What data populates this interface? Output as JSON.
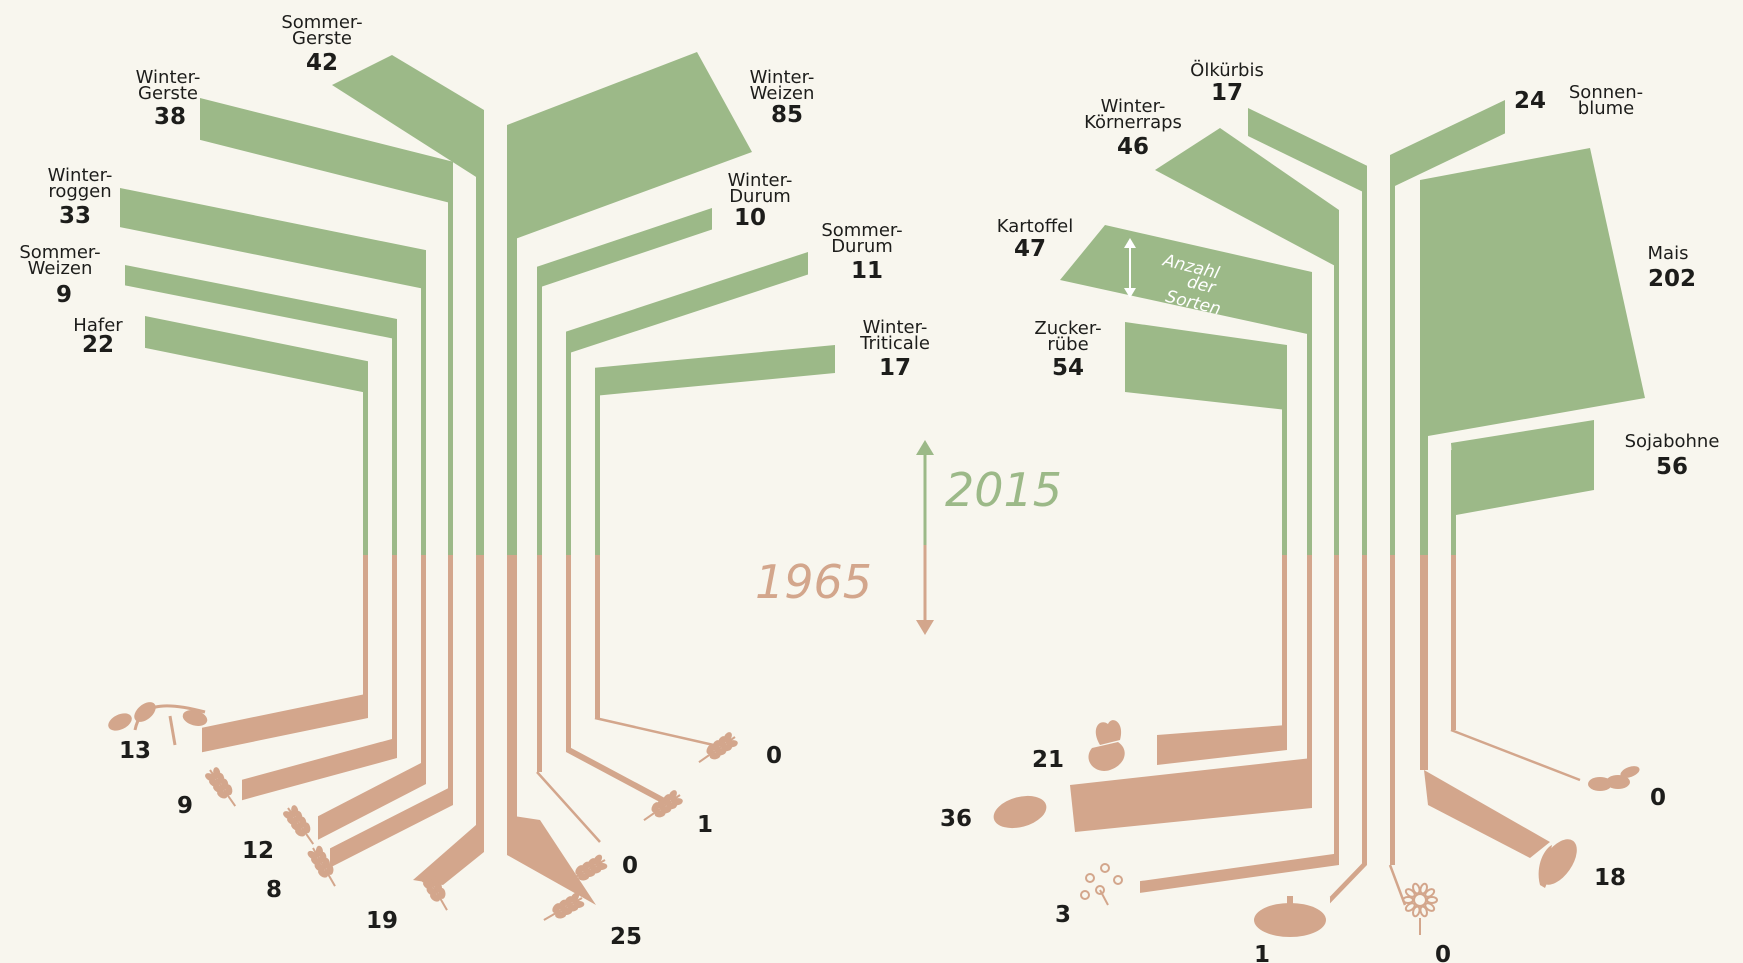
{
  "colors": {
    "green": "#9cb988",
    "brown": "#d3a68c",
    "text": "#1d1d1b",
    "background": "#f8f6ee"
  },
  "legend": {
    "year_new": "2015",
    "year_old": "1965",
    "arrow_note": [
      "Anzahl",
      "der",
      "Sorten"
    ]
  },
  "crops": [
    {
      "id": "sommer-gerste",
      "name": [
        "Sommer-",
        "Gerste"
      ],
      "v2015": 42,
      "v1965": 19,
      "icon": "wheat-icon"
    },
    {
      "id": "winter-gerste",
      "name": [
        "Winter-",
        "Gerste"
      ],
      "v2015": 38,
      "v1965": 8,
      "icon": "wheat-icon"
    },
    {
      "id": "winter-roggen",
      "name": [
        "Winter-",
        "roggen"
      ],
      "v2015": 33,
      "v1965": 12,
      "icon": "wheat-icon"
    },
    {
      "id": "sommer-weizen",
      "name": [
        "Sommer-",
        "Weizen"
      ],
      "v2015": 9,
      "v1965": 9,
      "icon": "wheat-icon"
    },
    {
      "id": "hafer",
      "name": [
        "Hafer"
      ],
      "v2015": 22,
      "v1965": 13,
      "icon": "oat-icon"
    },
    {
      "id": "winter-weizen",
      "name": [
        "Winter-",
        "Weizen"
      ],
      "v2015": 85,
      "v1965": 25,
      "icon": "wheat-icon"
    },
    {
      "id": "winter-durum",
      "name": [
        "Winter-",
        "Durum"
      ],
      "v2015": 10,
      "v1965": 0,
      "icon": "wheat-icon"
    },
    {
      "id": "sommer-durum",
      "name": [
        "Sommer-",
        "Durum"
      ],
      "v2015": 11,
      "v1965": 1,
      "icon": "wheat-icon"
    },
    {
      "id": "winter-triticale",
      "name": [
        "Winter-",
        "Triticale"
      ],
      "v2015": 17,
      "v1965": 0,
      "icon": "wheat-icon"
    },
    {
      "id": "oelkuerbis",
      "name": [
        "Ölkürbis"
      ],
      "v2015": 17,
      "v1965": 1,
      "icon": "pumpkin-icon"
    },
    {
      "id": "winter-koernerraps",
      "name": [
        "Winter-",
        "Körnerraps"
      ],
      "v2015": 46,
      "v1965": 3,
      "icon": "rapeseed-icon"
    },
    {
      "id": "kartoffel",
      "name": [
        "Kartoffel"
      ],
      "v2015": 47,
      "v1965": 36,
      "icon": "potato-icon"
    },
    {
      "id": "zuckerruebe",
      "name": [
        "Zucker-",
        "rübe"
      ],
      "v2015": 54,
      "v1965": 21,
      "icon": "sugar-beet-icon"
    },
    {
      "id": "sonnenblume",
      "name": [
        "Sonnen-",
        "blume"
      ],
      "v2015": 24,
      "v1965": 0,
      "icon": "sunflower-icon"
    },
    {
      "id": "mais",
      "name": [
        "Mais"
      ],
      "v2015": 202,
      "v1965": 18,
      "icon": "corn-icon"
    },
    {
      "id": "sojabohne",
      "name": [
        "Sojabohne"
      ],
      "v2015": 56,
      "v1965": 0,
      "icon": "soybean-icon"
    }
  ]
}
